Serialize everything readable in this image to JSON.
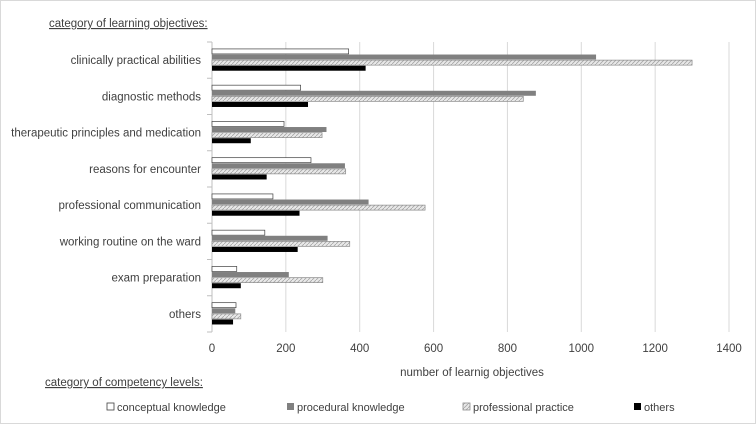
{
  "chart_data": {
    "type": "bar",
    "orientation": "horizontal",
    "category_title": "category of learning objectives:",
    "legend_title": "category of competency levels:",
    "xlabel": "number of learnig objectives",
    "ylabel": "",
    "xlim": [
      0,
      1400
    ],
    "x_ticks": [
      "0",
      "200",
      "400",
      "600",
      "800",
      "1000",
      "1200",
      "1400"
    ],
    "grid": "vertical",
    "legend_position": "bottom",
    "categories": [
      "clinically practical abilities",
      "diagnostic methods",
      "therapeutic principles and medication",
      "reasons for encounter",
      "professional communication",
      "working routine on the ward",
      "exam preparation",
      "others"
    ],
    "series": [
      {
        "name": "conceptual knowledge",
        "color": "#ffffff",
        "values": [
          370,
          240,
          195,
          268,
          165,
          143,
          67,
          65
        ]
      },
      {
        "name": "procedural knowledge",
        "color": "#7f7f7f",
        "values": [
          1040,
          877,
          310,
          360,
          424,
          313,
          208,
          63
        ]
      },
      {
        "name": "professional practice",
        "color": "#d9d9d9",
        "values": [
          1300,
          843,
          298,
          362,
          577,
          373,
          300,
          78
        ]
      },
      {
        "name": "others",
        "color": "#000000",
        "values": [
          416,
          260,
          105,
          148,
          237,
          232,
          78,
          57
        ]
      }
    ]
  }
}
